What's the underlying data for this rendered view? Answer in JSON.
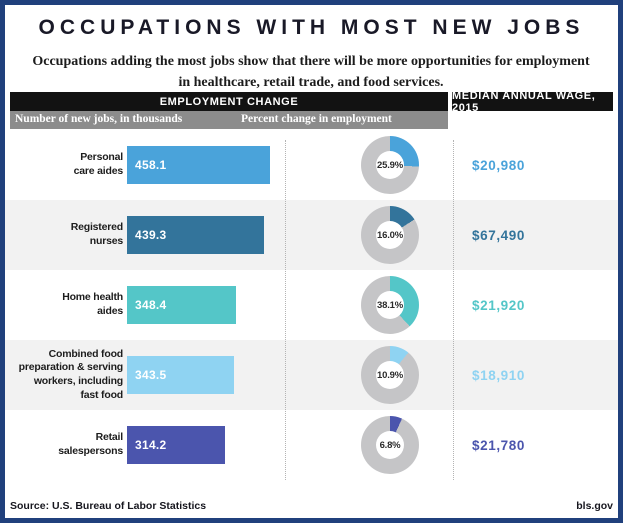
{
  "title": "OCCUPATIONS WITH MOST NEW JOBS",
  "subtitle": "Occupations adding the most jobs show that there will be more opportunities for employment in healthcare, retail trade, and food services.",
  "headers": {
    "employment_change": "EMPLOYMENT CHANGE",
    "median_wage": "MEDIAN ANNUAL WAGE, 2015",
    "new_jobs_sub": "Number of new jobs, in thousands",
    "percent_change_sub": "Percent change in employment"
  },
  "footer": {
    "source": "Source: U.S. Bureau of Labor Statistics",
    "site": "bls.gov"
  },
  "colors": {
    "border_navy": "#20407c",
    "header_black": "#121212",
    "subheader_gray": "#8c8c8c",
    "alt_row_bg": "#f2f2f2",
    "donut_remainder_gray": "#c5c5c7",
    "row_accents": [
      "#4aa3da",
      "#33749b",
      "#54c6c8",
      "#8fd3f2",
      "#4b55ad"
    ]
  },
  "chart_data": {
    "type": "bar",
    "categories": [
      "Personal care aides",
      "Registered nurses",
      "Home health aides",
      "Combined food preparation & serving workers, including fast food",
      "Retail salespersons"
    ],
    "series": [
      {
        "name": "Number of new jobs, in thousands",
        "values": [
          458.1,
          439.3,
          348.4,
          343.5,
          314.2
        ]
      },
      {
        "name": "Percent change in employment",
        "values": [
          25.9,
          16.0,
          38.1,
          10.9,
          6.8
        ]
      },
      {
        "name": "Median annual wage, 2015 (USD)",
        "values": [
          20980,
          67490,
          21920,
          18910,
          21780
        ]
      }
    ],
    "title": "Occupations with most new jobs",
    "xlabel": "",
    "ylabel": "New jobs, in thousands",
    "xlim": [
      0,
      458.1
    ],
    "grid": false,
    "legend_position": "none",
    "notes": "Horizontal bars for new jobs; donut charts for percent change; wage shown as colored text per row."
  },
  "rows": [
    {
      "occupation": "Personal\ncare aides",
      "new_jobs": 458.1,
      "pct": 25.9,
      "pct_label": "25.9%",
      "wage": "$20,980",
      "color": "#4aa3da"
    },
    {
      "occupation": "Registered\nnurses",
      "new_jobs": 439.3,
      "pct": 16.0,
      "pct_label": "16.0%",
      "wage": "$67,490",
      "color": "#33749b"
    },
    {
      "occupation": "Home health\naides",
      "new_jobs": 348.4,
      "pct": 38.1,
      "pct_label": "38.1%",
      "wage": "$21,920",
      "color": "#54c6c8"
    },
    {
      "occupation": "Combined food\npreparation & serving\nworkers, including\nfast food",
      "new_jobs": 343.5,
      "pct": 10.9,
      "pct_label": "10.9%",
      "wage": "$18,910",
      "color": "#8fd3f2"
    },
    {
      "occupation": "Retail\nsalespersons",
      "new_jobs": 314.2,
      "pct": 6.8,
      "pct_label": "6.8%",
      "wage": "$21,780",
      "color": "#4b55ad"
    }
  ]
}
